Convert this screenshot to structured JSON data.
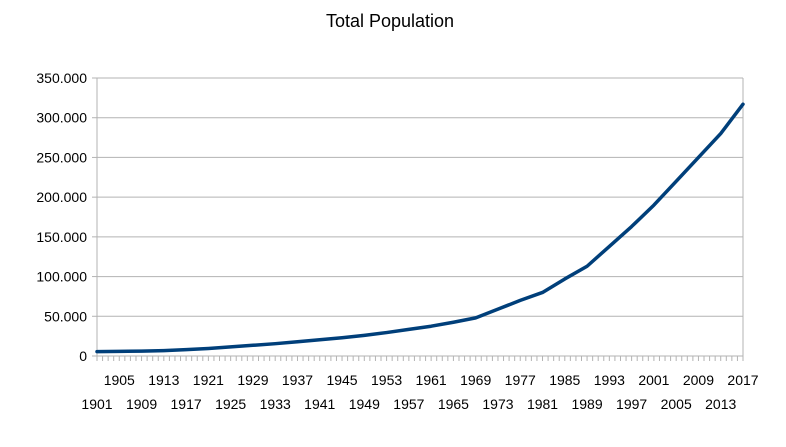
{
  "chart_data": {
    "type": "line",
    "title": "Total Population",
    "xlabel": "",
    "ylabel": "",
    "grid": true,
    "legend": "none",
    "ylim": [
      0,
      350000
    ],
    "yticks": [
      0,
      50000,
      100000,
      150000,
      200000,
      250000,
      300000,
      350000
    ],
    "ytick_labels": [
      "0",
      "50.000",
      "100.000",
      "150.000",
      "200.000",
      "250.000",
      "300.000",
      "350.000"
    ],
    "xlim": [
      1901,
      2017
    ],
    "xtick_labels_top": [
      "1905",
      "1913",
      "1921",
      "1929",
      "1937",
      "1945",
      "1953",
      "1961",
      "1969",
      "1977",
      "1985",
      "1993",
      "2001",
      "2009",
      "2017"
    ],
    "xtick_labels_bottom": [
      "1901",
      "1909",
      "1917",
      "1925",
      "1933",
      "1941",
      "1949",
      "1957",
      "1965",
      "1973",
      "1981",
      "1989",
      "1997",
      "2005",
      "2013"
    ],
    "series": [
      {
        "color": "#003f7a",
        "x": [
          1901,
          1905,
          1909,
          1913,
          1917,
          1921,
          1925,
          1929,
          1933,
          1937,
          1941,
          1945,
          1949,
          1953,
          1957,
          1961,
          1965,
          1969,
          1973,
          1977,
          1981,
          1985,
          1989,
          1993,
          1997,
          2001,
          2005,
          2009,
          2013,
          2017
        ],
        "y": [
          5500,
          5800,
          6200,
          6800,
          8000,
          9500,
          11500,
          13500,
          15500,
          18000,
          20500,
          23000,
          26000,
          29500,
          33500,
          37500,
          42500,
          48000,
          59000,
          70000,
          80000,
          97000,
          113000,
          138000,
          163000,
          190000,
          220000,
          250000,
          280000,
          317000
        ]
      }
    ]
  }
}
